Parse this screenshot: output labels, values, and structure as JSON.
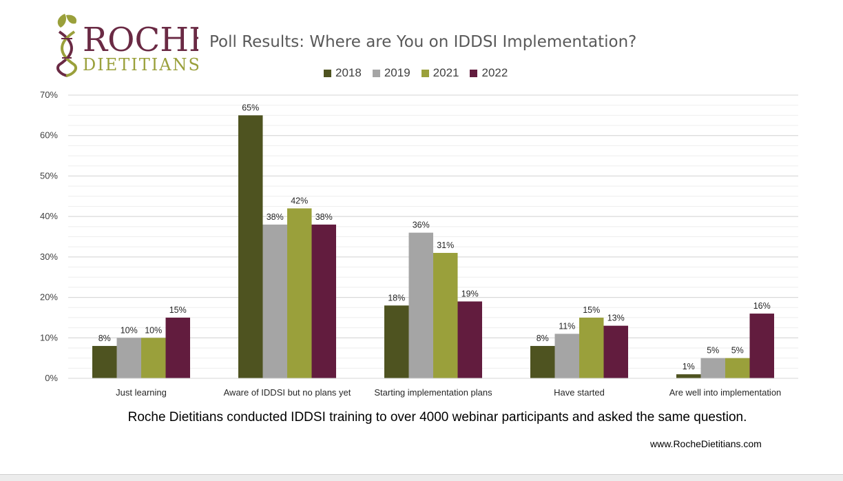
{
  "brand": {
    "name_line1": "ROCHE",
    "name_line2": "DIETITIANS",
    "colors": {
      "burgundy": "#6a2a44",
      "olive": "#9aa03b"
    },
    "icon": "dna-leaf-icon"
  },
  "legend": {
    "items": [
      {
        "label": "2018",
        "color": "#4e5320"
      },
      {
        "label": "2019",
        "color": "#a5a5a5"
      },
      {
        "label": "2021",
        "color": "#9aa03b"
      },
      {
        "label": "2022",
        "color": "#621c3e"
      }
    ]
  },
  "chart_data": {
    "type": "bar",
    "title": "Poll Results: Where are You on IDDSI Implementation?",
    "categories": [
      "Just learning",
      "Aware of IDDSI but no plans yet",
      "Starting implementation plans",
      "Have started",
      "Are well into implementation"
    ],
    "series": [
      {
        "name": "2018",
        "color": "#4e5320",
        "values": [
          8,
          65,
          18,
          8,
          1
        ],
        "labels": [
          "8%",
          "65%",
          "18%",
          "8%",
          "1%"
        ]
      },
      {
        "name": "2019",
        "color": "#a5a5a5",
        "values": [
          10,
          38,
          36,
          11,
          5
        ],
        "labels": [
          "10%",
          "38%",
          "36%",
          "11%",
          "5%"
        ]
      },
      {
        "name": "2021",
        "color": "#9aa03b",
        "values": [
          10,
          42,
          31,
          15,
          5
        ],
        "labels": [
          "10%",
          "42%",
          "31%",
          "15%",
          "5%"
        ]
      },
      {
        "name": "2022",
        "color": "#621c3e",
        "values": [
          15,
          38,
          19,
          13,
          16
        ],
        "labels": [
          "15%",
          "38%",
          "19%",
          "13%",
          "16%"
        ]
      }
    ],
    "ylim": [
      0,
      70
    ],
    "yticks": [
      0,
      10,
      20,
      30,
      40,
      50,
      60,
      70
    ],
    "ytick_labels": [
      "0%",
      "10%",
      "20%",
      "30%",
      "40%",
      "50%",
      "60%",
      "70%"
    ],
    "xlabel": "",
    "ylabel": "",
    "grid": true,
    "legend_position": "top"
  },
  "caption": "Roche Dietitians conducted IDDSI training to over 4000 webinar participants and asked the same question.",
  "website": "www.RocheDietitians.com"
}
